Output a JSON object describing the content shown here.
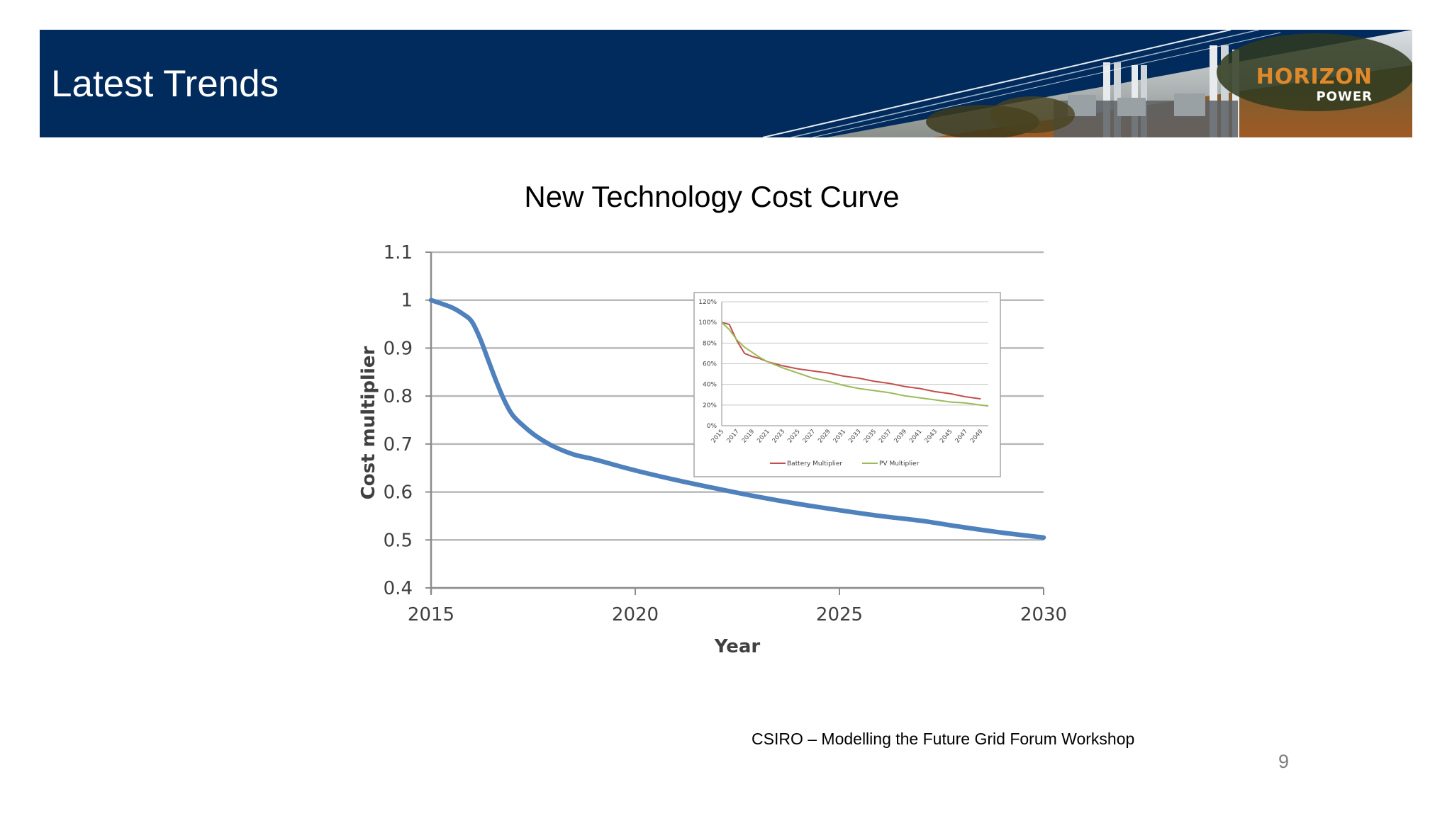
{
  "header": {
    "title": "Latest Trends",
    "logo_main": "HORIZON",
    "logo_sub": "POWER",
    "background_color": "#002b5c",
    "logo_color": "#e0892b"
  },
  "slide_title": "New Technology Cost Curve",
  "footer": {
    "source": "CSIRO – Modelling the Future Grid Forum Workshop",
    "page_number": "9"
  },
  "chart_data": [
    {
      "type": "line",
      "title": "",
      "xlabel": "Year",
      "ylabel": "Cost multiplier",
      "xlim": [
        2015,
        2030
      ],
      "ylim": [
        0.4,
        1.1
      ],
      "x_ticks": [
        "2015",
        "2020",
        "2025",
        "2030"
      ],
      "y_ticks": [
        "0.4",
        "0.5",
        "0.6",
        "0.7",
        "0.8",
        "0.9",
        "1",
        "1.1"
      ],
      "grid": true,
      "series": [
        {
          "color": "#4f81bd",
          "x": [
            2015,
            2015.5,
            2015.8,
            2016,
            2016.2,
            2016.4,
            2016.6,
            2016.8,
            2017,
            2017.3,
            2017.6,
            2018,
            2018.5,
            2019,
            2020,
            2021,
            2022,
            2023,
            2024,
            2025,
            2026,
            2027,
            2028,
            2029,
            2030
          ],
          "values": [
            1.0,
            0.985,
            0.97,
            0.955,
            0.92,
            0.875,
            0.83,
            0.79,
            0.76,
            0.735,
            0.715,
            0.695,
            0.678,
            0.668,
            0.645,
            0.625,
            0.607,
            0.59,
            0.575,
            0.562,
            0.55,
            0.54,
            0.527,
            0.515,
            0.505
          ]
        }
      ]
    },
    {
      "type": "line",
      "title": "",
      "ylim": [
        0,
        120
      ],
      "y_ticks": [
        "0%",
        "20%",
        "40%",
        "60%",
        "80%",
        "100%",
        "120%"
      ],
      "x_ticks": [
        "2015",
        "2017",
        "2019",
        "2021",
        "2023",
        "2025",
        "2027",
        "2029",
        "2031",
        "2033",
        "2035",
        "2037",
        "2039",
        "2041",
        "2043",
        "2045",
        "2047",
        "2049"
      ],
      "grid": true,
      "legend": "bottom",
      "series": [
        {
          "name": "Battery Multiplier",
          "color": "#c0504d",
          "x": [
            2015,
            2016,
            2017,
            2018,
            2019,
            2020,
            2021,
            2023,
            2025,
            2027,
            2029,
            2031,
            2033,
            2035,
            2037,
            2039,
            2041,
            2043,
            2045,
            2047,
            2049
          ],
          "values": [
            100,
            98,
            82,
            70,
            67,
            65,
            62,
            58,
            55,
            53,
            51,
            48,
            46,
            43,
            41,
            38,
            36,
            33,
            31,
            28,
            26
          ]
        },
        {
          "name": "PV Multiplier",
          "color": "#9bbb59",
          "x": [
            2015,
            2016,
            2017,
            2018,
            2019,
            2020,
            2021,
            2023,
            2025,
            2027,
            2029,
            2031,
            2033,
            2035,
            2037,
            2039,
            2041,
            2043,
            2045,
            2047,
            2049,
            2050
          ],
          "values": [
            100,
            93,
            83,
            76,
            71,
            66,
            62,
            56,
            51,
            46,
            43,
            39,
            36,
            34,
            32,
            29,
            27,
            25,
            23,
            22,
            20,
            19
          ]
        }
      ]
    }
  ]
}
